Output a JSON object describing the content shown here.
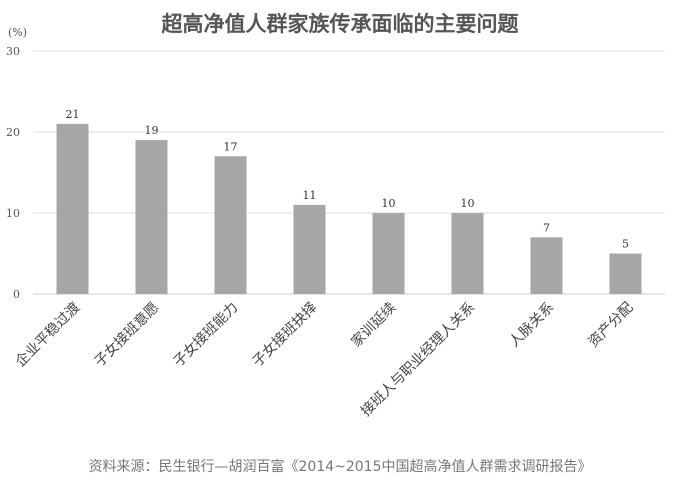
{
  "chart_data": {
    "type": "bar",
    "title": "超高净值人群家族传承面临的主要问题",
    "ylabel": "(%)",
    "xlabel": "",
    "ylim": [
      0,
      30
    ],
    "yticks": [
      0,
      10,
      20,
      30
    ],
    "grid": true,
    "categories": [
      "企业平稳过渡",
      "子女接班意愿",
      "子女接班能力",
      "子女接班抉择",
      "家训延续",
      "接班人与职业经理人关系",
      "人脉关系",
      "资产分配"
    ],
    "values": [
      21,
      19,
      17,
      11,
      10,
      10,
      7,
      5
    ],
    "bar_color": "#a6a6a6",
    "source": "资料来源：民生银行—胡润百富《2014~2015中国超高净值人群需求调研报告》"
  }
}
